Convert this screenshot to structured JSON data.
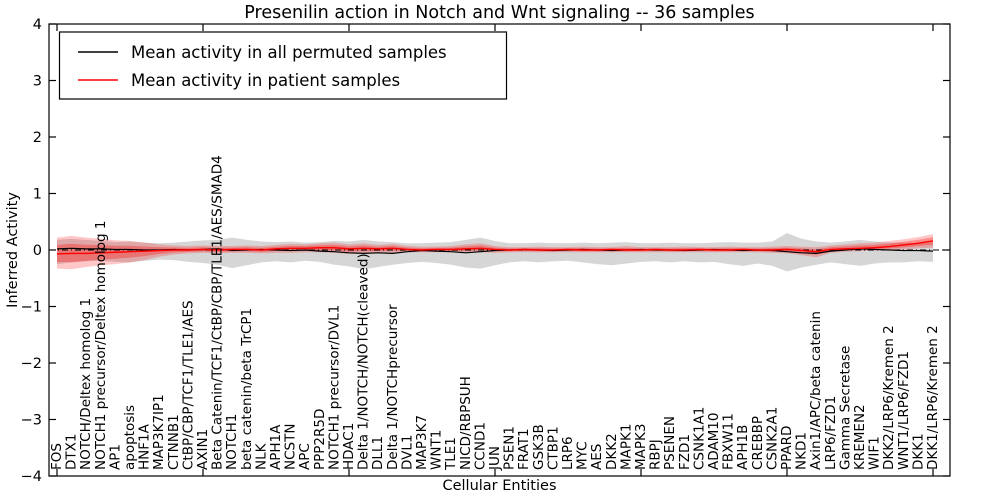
{
  "figure": {
    "title": "Presenilin action in Notch and Wnt signaling -- 36 samples",
    "xlabel": "Cellular Entities",
    "ylabel": "Inferred Activity"
  },
  "legend": {
    "items": [
      {
        "label": "Mean activity in all permuted samples",
        "color": "#000000"
      },
      {
        "label": "Mean activity in patient samples",
        "color": "#ff0000"
      }
    ]
  },
  "chart_data": {
    "type": "line",
    "title": "Presenilin action in Notch and Wnt signaling -- 36 samples",
    "xlabel": "Cellular Entities",
    "ylabel": "Inferred Activity",
    "ylim": [
      -4,
      4
    ],
    "yticks": [
      4,
      3,
      2,
      1,
      0,
      -1,
      -2,
      -3,
      -4
    ],
    "ytick_labels": [
      "4",
      "3",
      "2",
      "1",
      "0",
      "−1",
      "−2",
      "−3",
      "−4"
    ],
    "xticks_every": 10,
    "grid": false,
    "legend_position": "upper left",
    "zero_line": {
      "style": "dash-dot",
      "color": "#000000",
      "y": 0
    },
    "categories": [
      "FOS",
      "DTX1",
      "NOTCH/Deltex homolog 1",
      "NOTCH1 precursor/Deltex homolog 1",
      "AP1",
      "apoptosis",
      "HNF1A",
      "MAP3K7IP1",
      "CTNNB1",
      "CtBP/CBP/TCF1/TLE1/AES",
      "AXIN1",
      "Beta Catenin/TCF1/CtBP/CBP/TLE1/AES/SMAD4",
      "NOTCH1",
      "beta catenin/beta TrCP1",
      "NLK",
      "APH1A",
      "NCSTN",
      "APC",
      "PPP2R5D",
      "NOTCH1 precursor/DVL1",
      "HDAC1",
      "Delta 1/NOTCH/NOTCH(cleaved)",
      "DLL1",
      "Delta 1/NOTCHprecursor",
      "DVL1",
      "MAP3K7",
      "WNT1",
      "TLE1",
      "NICD/RBPSUH",
      "CCND1",
      "JUN",
      "PSEN1",
      "FRAT1",
      "GSK3B",
      "CTBP1",
      "LRP6",
      "MYC",
      "AES",
      "DKK2",
      "MAPK1",
      "MAPK3",
      "RBPJ",
      "PSENEN",
      "FZD1",
      "CSNK1A1",
      "ADAM10",
      "FBXW11",
      "APH1B",
      "CREBBP",
      "CSNK2A1",
      "PPARD",
      "NKD1",
      "Axin1/APC/beta catenin",
      "LRP6/FZD1",
      "Gamma Secretase",
      "KREMEN2",
      "WIF1",
      "DKK2/LRP6/Kremen 2",
      "WNT1/LRP6/FZD1",
      "DKK1",
      "DKK1/LRP6/Kremen 2"
    ],
    "series": [
      {
        "name": "Mean activity in all permuted samples",
        "color": "#000000",
        "values": [
          0.02,
          0.03,
          0.02,
          0.02,
          0.01,
          0.01,
          0.0,
          0.0,
          0.01,
          0.0,
          0.01,
          0.02,
          -0.01,
          0.0,
          0.01,
          0.0,
          -0.01,
          0.0,
          -0.02,
          -0.03,
          -0.05,
          -0.06,
          -0.05,
          -0.06,
          -0.03,
          -0.01,
          -0.02,
          -0.03,
          -0.05,
          -0.03,
          -0.01,
          0.0,
          0.01,
          0.0,
          -0.01,
          0.0,
          0.01,
          0.0,
          -0.01,
          0.0,
          0.01,
          0.0,
          0.0,
          -0.01,
          0.0,
          0.01,
          0.0,
          -0.01,
          0.0,
          -0.01,
          -0.03,
          -0.05,
          -0.06,
          -0.02,
          0.0,
          0.02,
          0.01,
          0.0,
          -0.01,
          -0.01,
          -0.02
        ]
      },
      {
        "name": "Mean activity in patient samples",
        "color": "#ff0000",
        "values": [
          -0.07,
          -0.06,
          -0.06,
          -0.05,
          -0.04,
          -0.03,
          -0.02,
          -0.01,
          0.0,
          0.0,
          0.01,
          0.0,
          0.01,
          0.01,
          0.0,
          0.02,
          0.03,
          0.03,
          0.04,
          0.04,
          0.02,
          0.03,
          0.02,
          0.03,
          0.01,
          0.0,
          0.01,
          0.01,
          0.02,
          0.03,
          0.01,
          0.0,
          0.01,
          0.0,
          0.0,
          0.01,
          0.0,
          0.0,
          0.01,
          0.0,
          0.0,
          0.01,
          0.0,
          0.0,
          0.01,
          0.0,
          0.0,
          0.01,
          0.0,
          0.0,
          0.01,
          -0.01,
          -0.03,
          0.01,
          0.02,
          0.03,
          0.04,
          0.06,
          0.09,
          0.12,
          0.16
        ]
      }
    ],
    "bands": [
      {
        "name": "permuted-range",
        "color": "#000000",
        "opacity": 0.16,
        "lower": [
          -0.25,
          -0.22,
          -0.2,
          -0.19,
          -0.21,
          -0.22,
          -0.19,
          -0.17,
          -0.18,
          -0.21,
          -0.23,
          -0.26,
          -0.32,
          -0.27,
          -0.22,
          -0.2,
          -0.22,
          -0.19,
          -0.21,
          -0.26,
          -0.29,
          -0.34,
          -0.3,
          -0.26,
          -0.23,
          -0.21,
          -0.23,
          -0.26,
          -0.31,
          -0.33,
          -0.27,
          -0.22,
          -0.2,
          -0.22,
          -0.2,
          -0.19,
          -0.22,
          -0.25,
          -0.27,
          -0.24,
          -0.21,
          -0.2,
          -0.22,
          -0.2,
          -0.22,
          -0.21,
          -0.25,
          -0.28,
          -0.24,
          -0.28,
          -0.38,
          -0.31,
          -0.26,
          -0.22,
          -0.25,
          -0.28,
          -0.24,
          -0.22,
          -0.22,
          -0.2,
          -0.21
        ],
        "upper": [
          0.18,
          0.2,
          0.18,
          0.16,
          0.14,
          0.15,
          0.13,
          0.12,
          0.13,
          0.15,
          0.17,
          0.18,
          0.22,
          0.18,
          0.15,
          0.14,
          0.15,
          0.13,
          0.14,
          0.16,
          0.15,
          0.18,
          0.15,
          0.14,
          0.12,
          0.12,
          0.13,
          0.14,
          0.18,
          0.22,
          0.16,
          0.12,
          0.12,
          0.13,
          0.12,
          0.12,
          0.13,
          0.12,
          0.13,
          0.14,
          0.12,
          0.12,
          0.13,
          0.12,
          0.12,
          0.13,
          0.14,
          0.13,
          0.13,
          0.15,
          0.3,
          0.2,
          0.15,
          0.13,
          0.15,
          0.18,
          0.15,
          0.13,
          0.13,
          0.12,
          0.13
        ]
      },
      {
        "name": "patient-range-outer",
        "color": "#ff0000",
        "opacity": 0.22,
        "lower": [
          -0.33,
          -0.34,
          -0.3,
          -0.27,
          -0.25,
          -0.22,
          -0.18,
          -0.12,
          -0.08,
          -0.06,
          -0.05,
          -0.06,
          -0.05,
          -0.05,
          -0.06,
          -0.05,
          -0.05,
          -0.04,
          -0.04,
          -0.05,
          -0.07,
          -0.06,
          -0.05,
          -0.05,
          -0.04,
          -0.04,
          -0.04,
          -0.04,
          -0.04,
          -0.04,
          -0.05,
          -0.04,
          -0.04,
          -0.04,
          -0.04,
          -0.04,
          -0.04,
          -0.04,
          -0.04,
          -0.04,
          -0.04,
          -0.04,
          -0.04,
          -0.04,
          -0.04,
          -0.04,
          -0.04,
          -0.04,
          -0.04,
          -0.05,
          -0.06,
          -0.09,
          -0.13,
          -0.05,
          -0.03,
          -0.02,
          -0.01,
          0.0,
          0.01,
          0.03,
          0.04
        ],
        "upper": [
          0.22,
          0.25,
          0.22,
          0.2,
          0.17,
          0.16,
          0.13,
          0.1,
          0.08,
          0.07,
          0.08,
          0.07,
          0.07,
          0.08,
          0.07,
          0.09,
          0.11,
          0.1,
          0.12,
          0.13,
          0.1,
          0.12,
          0.09,
          0.11,
          0.07,
          0.06,
          0.06,
          0.07,
          0.1,
          0.12,
          0.07,
          0.05,
          0.05,
          0.06,
          0.05,
          0.05,
          0.06,
          0.05,
          0.05,
          0.07,
          0.05,
          0.05,
          0.05,
          0.06,
          0.05,
          0.05,
          0.06,
          0.05,
          0.05,
          0.06,
          0.07,
          0.06,
          0.05,
          0.08,
          0.1,
          0.12,
          0.13,
          0.16,
          0.19,
          0.23,
          0.28
        ]
      }
    ],
    "patient_inner_band_scale": 0.55
  }
}
